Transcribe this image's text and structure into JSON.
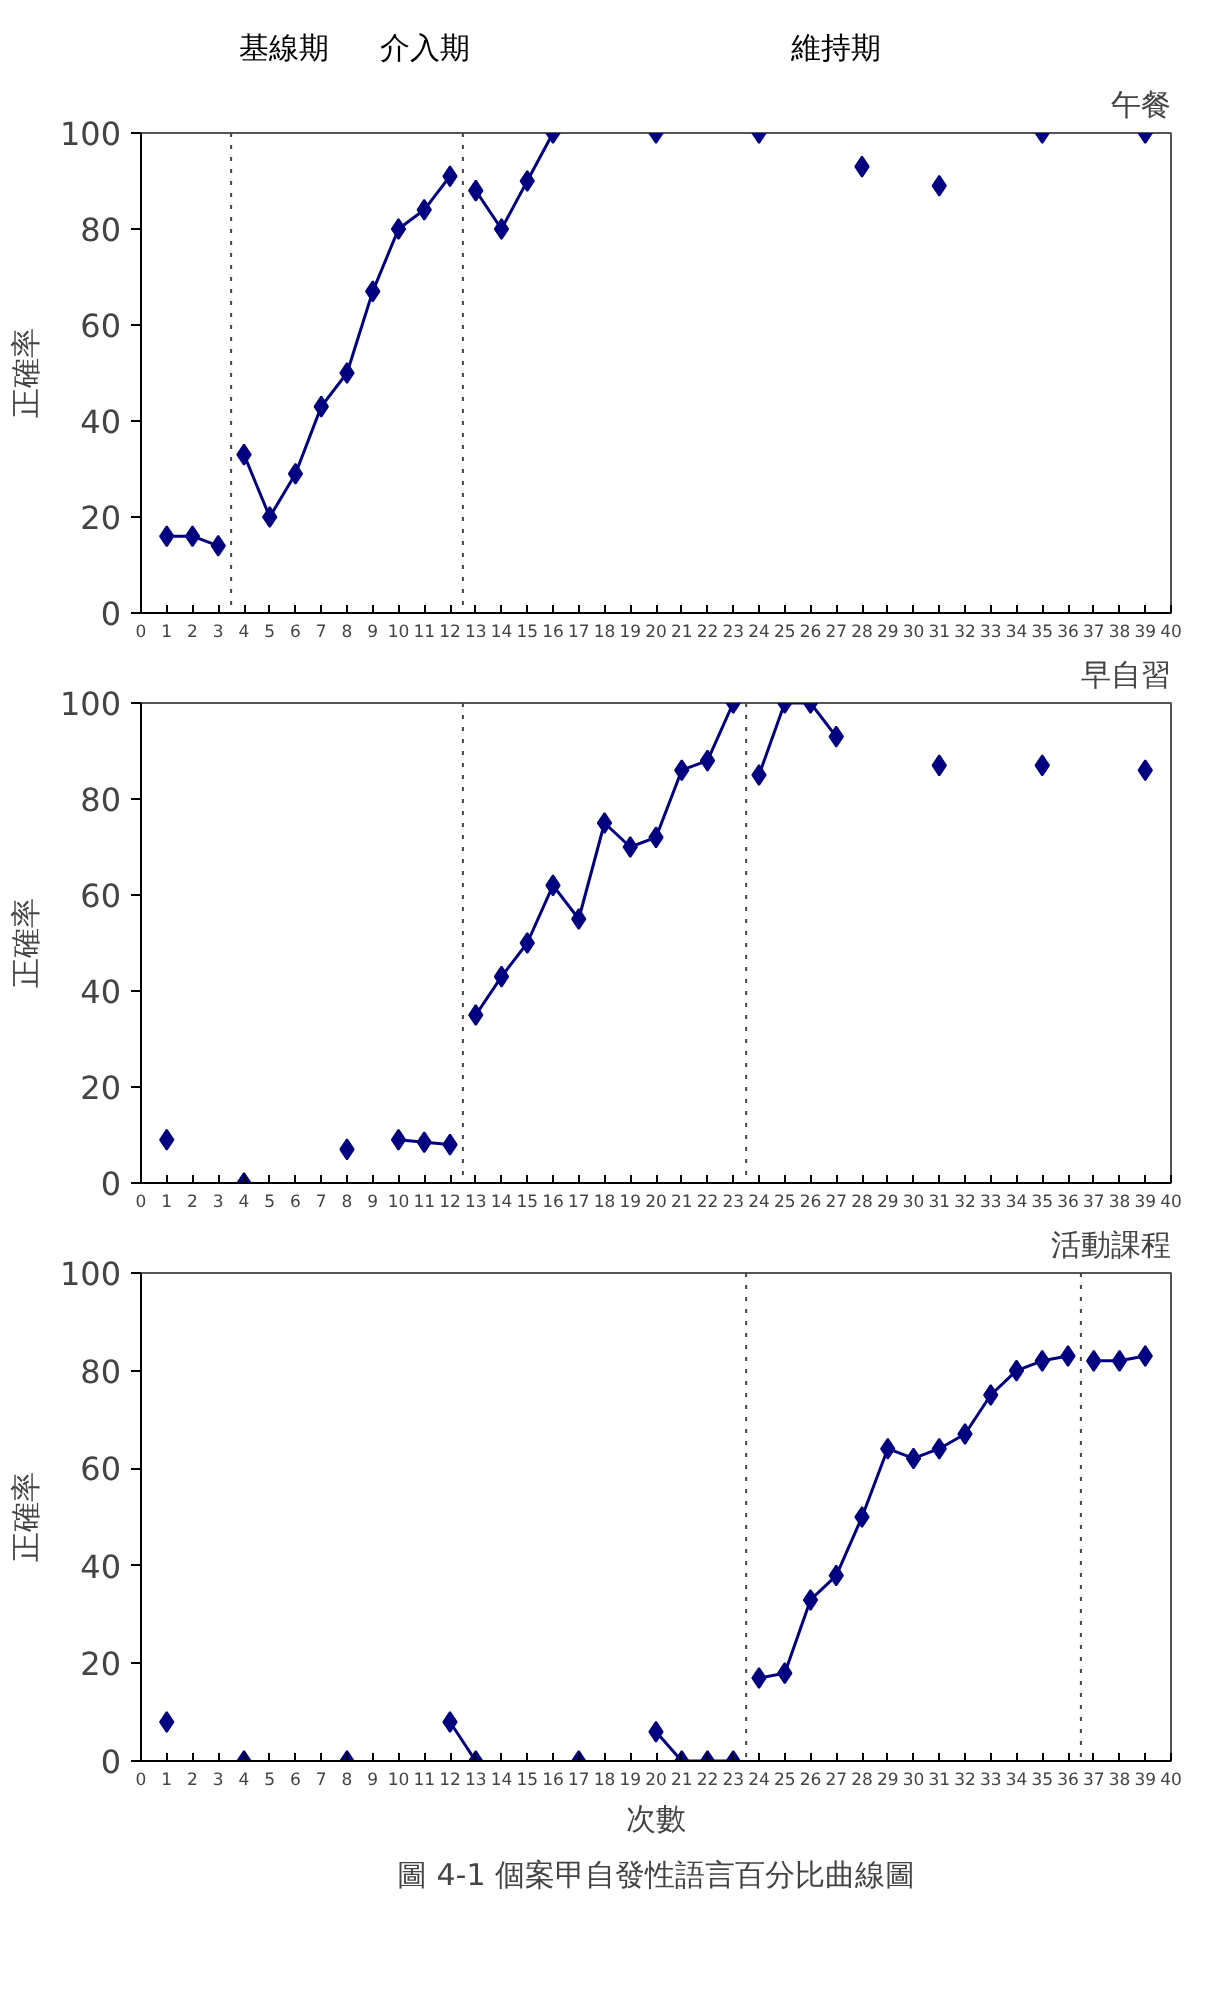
{
  "chart_data": [
    {
      "type": "line",
      "title": "午餐",
      "ylabel": "正確率",
      "marker": "diamond",
      "grid": false,
      "annotations": [
        "基線期",
        "介入期",
        "維持期"
      ],
      "xlim": [
        0,
        40
      ],
      "xticks": [
        0,
        1,
        2,
        3,
        4,
        5,
        6,
        7,
        8,
        9,
        10,
        11,
        12,
        13,
        14,
        15,
        16,
        17,
        18,
        19,
        20,
        21,
        22,
        23,
        24,
        25,
        26,
        27,
        28,
        29,
        30,
        31,
        32,
        33,
        34,
        35,
        36,
        37,
        38,
        39,
        40
      ],
      "ylim": [
        0,
        100
      ],
      "yticks": [
        0,
        20,
        40,
        60,
        80,
        100
      ],
      "ref_lines": [
        {
          "axis": "x",
          "value": 3.5,
          "line_style": "dotted"
        },
        {
          "axis": "x",
          "value": 12.5,
          "line_style": "dotted"
        }
      ],
      "series": [
        {
          "color": "#000080",
          "x": [
            1,
            2,
            3
          ],
          "values": [
            16,
            16,
            14
          ]
        },
        {
          "color": "#000080",
          "x": [
            4,
            5,
            6,
            7,
            8,
            9,
            10,
            11,
            12
          ],
          "values": [
            33,
            20,
            29,
            43,
            50,
            67,
            80,
            84,
            91
          ]
        },
        {
          "color": "#000080",
          "x": [
            13,
            14,
            15,
            16
          ],
          "values": [
            88,
            80,
            90,
            100
          ]
        },
        {
          "type": "scatter",
          "color": "#000080",
          "x": [
            20,
            24,
            28,
            31,
            35,
            39
          ],
          "values": [
            100,
            100,
            93,
            89,
            100,
            100
          ]
        }
      ]
    },
    {
      "type": "line",
      "title": "早自習",
      "ylabel": "正確率",
      "marker": "diamond",
      "grid": false,
      "xlim": [
        0,
        40
      ],
      "xticks": [
        0,
        1,
        2,
        3,
        4,
        5,
        6,
        7,
        8,
        9,
        10,
        11,
        12,
        13,
        14,
        15,
        16,
        17,
        18,
        19,
        20,
        21,
        22,
        23,
        24,
        25,
        26,
        27,
        28,
        29,
        30,
        31,
        32,
        33,
        34,
        35,
        36,
        37,
        38,
        39,
        40
      ],
      "ylim": [
        0,
        100
      ],
      "yticks": [
        0,
        20,
        40,
        60,
        80,
        100
      ],
      "ref_lines": [
        {
          "axis": "x",
          "value": 12.5,
          "line_style": "dotted"
        },
        {
          "axis": "x",
          "value": 23.5,
          "line_style": "dotted"
        }
      ],
      "series": [
        {
          "type": "scatter",
          "color": "#000080",
          "x": [
            1,
            4,
            8
          ],
          "values": [
            9,
            0,
            7
          ]
        },
        {
          "color": "#000080",
          "x": [
            10,
            11,
            12
          ],
          "values": [
            9,
            8.5,
            8
          ]
        },
        {
          "color": "#000080",
          "x": [
            13,
            14,
            15,
            16,
            17,
            18,
            19,
            20,
            21,
            22,
            23
          ],
          "values": [
            35,
            43,
            50,
            62,
            55,
            75,
            70,
            72,
            86,
            88,
            100
          ]
        },
        {
          "color": "#000080",
          "x": [
            24,
            25,
            26,
            27
          ],
          "values": [
            85,
            100,
            100,
            93
          ]
        },
        {
          "type": "scatter",
          "color": "#000080",
          "x": [
            31,
            35,
            39
          ],
          "values": [
            87,
            87,
            86
          ]
        }
      ]
    },
    {
      "type": "line",
      "title": "活動課程",
      "xlabel": "次數",
      "ylabel": "正確率",
      "marker": "diamond",
      "grid": false,
      "annotations": [
        "圖 4-1 個案甲自發性語言百分比曲線圖"
      ],
      "xlim": [
        0,
        40
      ],
      "xticks": [
        0,
        1,
        2,
        3,
        4,
        5,
        6,
        7,
        8,
        9,
        10,
        11,
        12,
        13,
        14,
        15,
        16,
        17,
        18,
        19,
        20,
        21,
        22,
        23,
        24,
        25,
        26,
        27,
        28,
        29,
        30,
        31,
        32,
        33,
        34,
        35,
        36,
        37,
        38,
        39,
        40
      ],
      "ylim": [
        0,
        100
      ],
      "yticks": [
        0,
        20,
        40,
        60,
        80,
        100
      ],
      "ref_lines": [
        {
          "axis": "x",
          "value": 23.5,
          "line_style": "dotted"
        },
        {
          "axis": "x",
          "value": 36.5,
          "line_style": "dotted"
        }
      ],
      "series": [
        {
          "type": "scatter",
          "color": "#000080",
          "x": [
            1,
            4,
            8
          ],
          "values": [
            8,
            0,
            0
          ]
        },
        {
          "color": "#000080",
          "x": [
            12,
            13
          ],
          "values": [
            8,
            0
          ]
        },
        {
          "type": "scatter",
          "color": "#000080",
          "x": [
            17
          ],
          "values": [
            0
          ]
        },
        {
          "color": "#000080",
          "x": [
            20,
            21,
            22,
            23
          ],
          "values": [
            6,
            0,
            0,
            0
          ]
        },
        {
          "color": "#000080",
          "x": [
            24,
            25,
            26,
            27,
            28,
            29,
            30,
            31,
            32,
            33,
            34,
            35,
            36
          ],
          "values": [
            17,
            18,
            33,
            38,
            50,
            64,
            62,
            64,
            67,
            75,
            80,
            82,
            83
          ]
        },
        {
          "color": "#000080",
          "x": [
            37,
            38,
            39
          ],
          "values": [
            82,
            82,
            83
          ]
        }
      ]
    }
  ]
}
